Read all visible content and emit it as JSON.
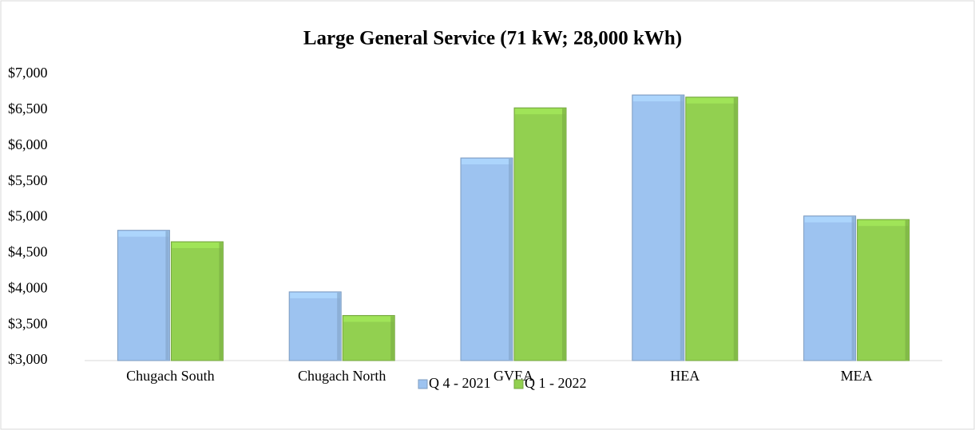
{
  "chart_data": {
    "type": "bar",
    "title": "Large General Service (71 kW; 28,000 kWh)",
    "categories": [
      "Chugach South",
      "Chugach North",
      "GVEA",
      "HEA",
      "MEA"
    ],
    "series": [
      {
        "name": "Q 4 - 2021",
        "color": "#9dc3f0",
        "values": [
          4820,
          3960,
          5830,
          6710,
          5020
        ]
      },
      {
        "name": "Q 1 - 2022",
        "color": "#92d050",
        "values": [
          4660,
          3630,
          6530,
          6680,
          4970
        ]
      }
    ],
    "ylim": [
      3000,
      7000
    ],
    "yticks": [
      {
        "value": 3000,
        "label": "$3,000"
      },
      {
        "value": 3500,
        "label": "$3,500"
      },
      {
        "value": 4000,
        "label": "$4,000"
      },
      {
        "value": 4500,
        "label": "$4,500"
      },
      {
        "value": 5000,
        "label": "$5,000"
      },
      {
        "value": 5500,
        "label": "$5,500"
      },
      {
        "value": 6000,
        "label": "$6,000"
      },
      {
        "value": 6500,
        "label": "$6,500"
      },
      {
        "value": 7000,
        "label": "$7,000"
      }
    ],
    "grid": false,
    "legend": "bottom"
  }
}
